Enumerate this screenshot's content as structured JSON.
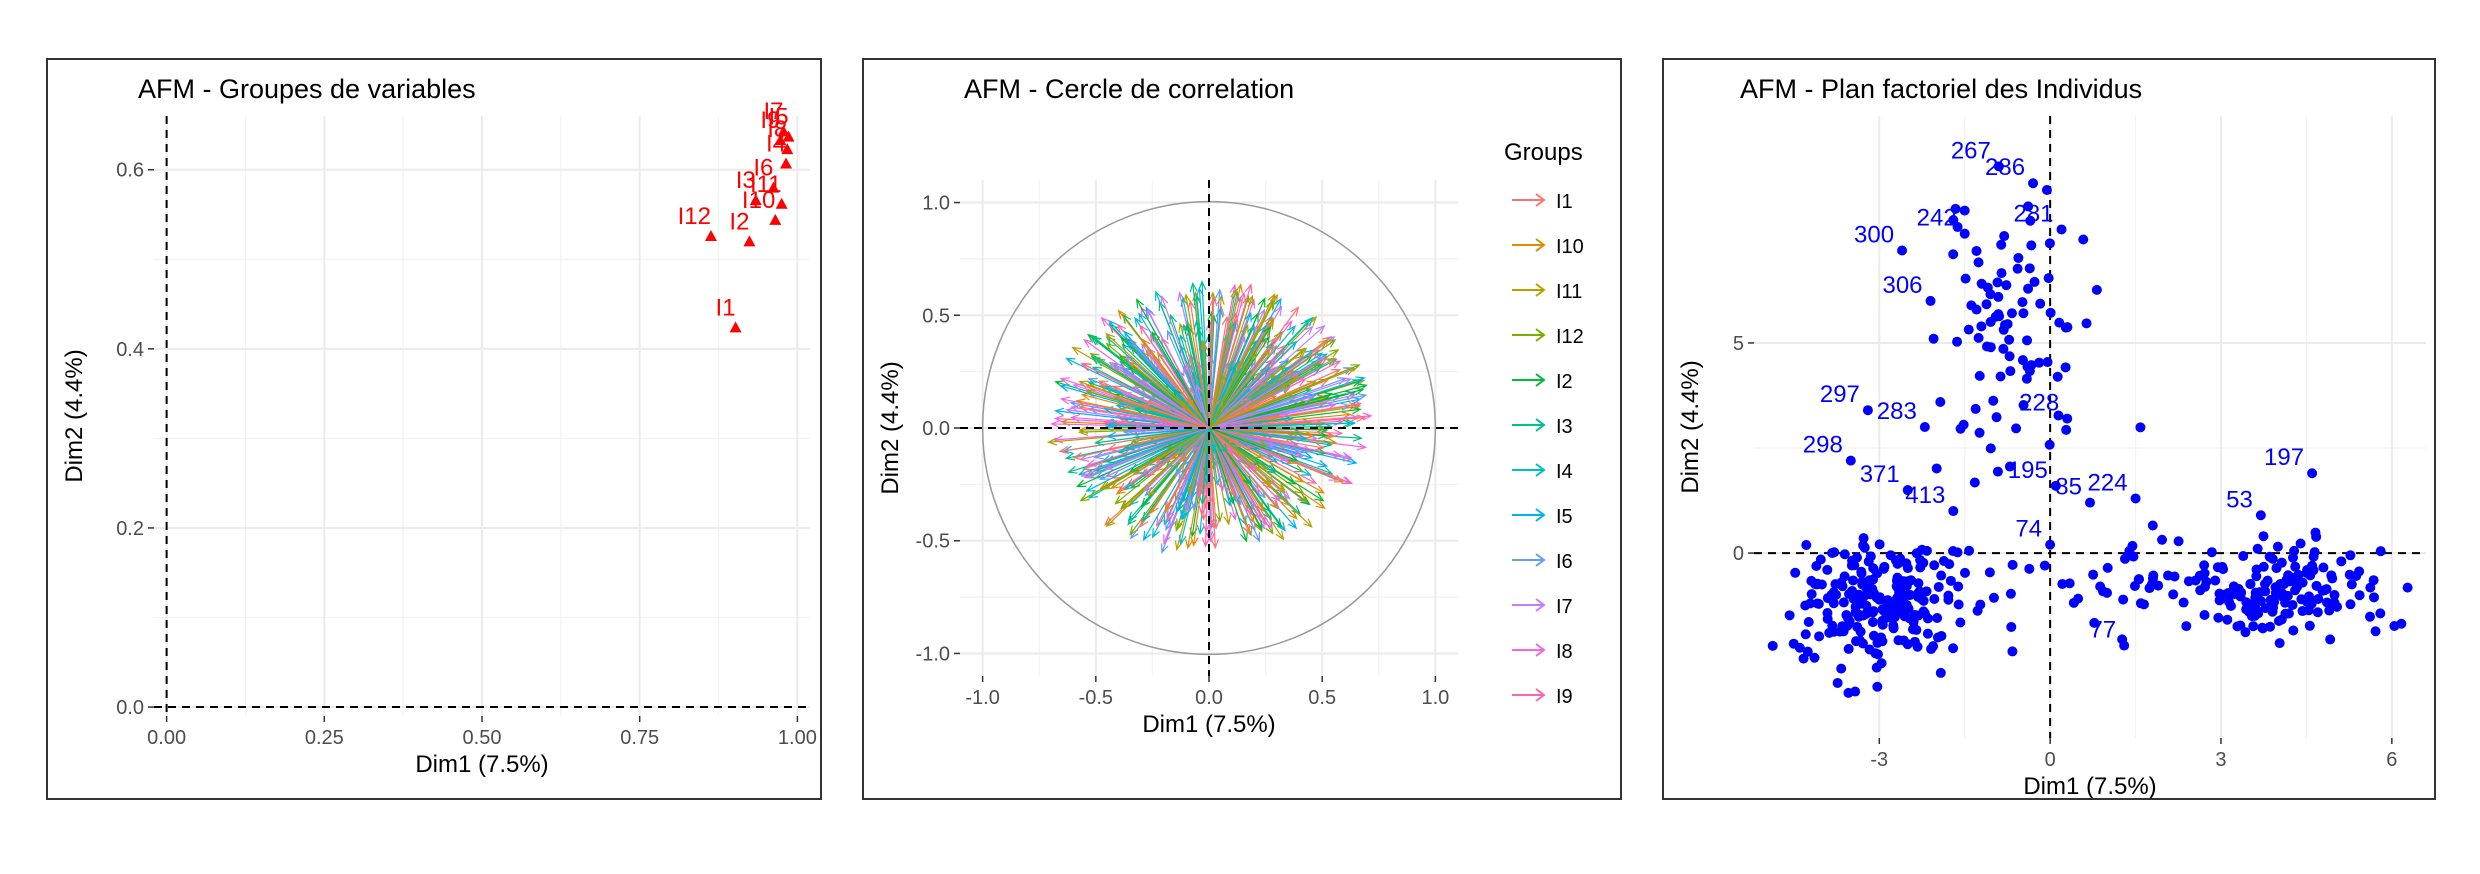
{
  "chart_data": [
    {
      "type": "scatter",
      "title": "AFM - Groupes de variables",
      "xlabel": "Dim1 (7.5%)",
      "ylabel": "Dim2 (4.4%)",
      "xlim": [
        -0.02,
        1.02
      ],
      "ylim": [
        -0.01,
        0.66
      ],
      "x_ticks": [
        "0.00",
        "0.25",
        "0.50",
        "0.75",
        "1.00"
      ],
      "y_ticks": [
        "0.0",
        "0.2",
        "0.4",
        "0.6"
      ],
      "grid": true,
      "marker_color": "#ff0000",
      "points": [
        {
          "label": "I1",
          "x": 0.902,
          "y": 0.424
        },
        {
          "label": "I12",
          "x": 0.863,
          "y": 0.526
        },
        {
          "label": "I2",
          "x": 0.924,
          "y": 0.52
        },
        {
          "label": "I10",
          "x": 0.965,
          "y": 0.544
        },
        {
          "label": "I11",
          "x": 0.975,
          "y": 0.562
        },
        {
          "label": "I3",
          "x": 0.934,
          "y": 0.566
        },
        {
          "label": "I6",
          "x": 0.962,
          "y": 0.58
        },
        {
          "label": "I4",
          "x": 0.982,
          "y": 0.607
        },
        {
          "label": "I8",
          "x": 0.984,
          "y": 0.623
        },
        {
          "label": "I5",
          "x": 0.986,
          "y": 0.637
        },
        {
          "label": "I7",
          "x": 0.978,
          "y": 0.643
        },
        {
          "label": "I9",
          "x": 0.973,
          "y": 0.633
        }
      ],
      "reference_lines": {
        "x": 0,
        "y": 0,
        "style": "dashed"
      }
    },
    {
      "type": "scatter",
      "title": "AFM - Cercle de correlation",
      "xlabel": "Dim1 (7.5%)",
      "ylabel": "Dim2 (4.4%)",
      "xlim": [
        -1.1,
        1.1
      ],
      "ylim": [
        -1.1,
        1.1
      ],
      "x_ticks": [
        "-1.0",
        "-0.5",
        "0.0",
        "0.5",
        "1.0"
      ],
      "y_ticks": [
        "-1.0",
        "-0.5",
        "0.0",
        "0.5",
        "1.0"
      ],
      "grid": true,
      "unit_circle": true,
      "legend_title": "Groups",
      "legend_position": "right",
      "groups": [
        {
          "name": "I1",
          "color": "#F8766D"
        },
        {
          "name": "I10",
          "color": "#DE8C00"
        },
        {
          "name": "I11",
          "color": "#B79F00"
        },
        {
          "name": "I12",
          "color": "#7CAE00"
        },
        {
          "name": "I2",
          "color": "#00BA38"
        },
        {
          "name": "I3",
          "color": "#00C08B"
        },
        {
          "name": "I4",
          "color": "#00BFC4"
        },
        {
          "name": "I5",
          "color": "#00B4F0"
        },
        {
          "name": "I6",
          "color": "#619CFF"
        },
        {
          "name": "I7",
          "color": "#C77CFF"
        },
        {
          "name": "I8",
          "color": "#F564E3"
        },
        {
          "name": "I9",
          "color": "#FF64B0"
        }
      ],
      "arrow_cloud": {
        "x_range": [
          -0.72,
          0.72
        ],
        "y_range": [
          -0.58,
          0.66
        ],
        "count_per_group": 60
      }
    },
    {
      "type": "scatter",
      "title": "AFM - Plan factoriel des Individus",
      "xlabel": "Dim1 (7.5%)",
      "ylabel": "Dim2 (4.4%)",
      "xlim": [
        -5.2,
        6.6
      ],
      "ylim": [
        -4.4,
        10.4
      ],
      "x_ticks": [
        "-3",
        "0",
        "3",
        "6"
      ],
      "y_ticks": [
        "0",
        "5"
      ],
      "grid": true,
      "marker_color": "#0000ff",
      "labeled_points": [
        {
          "label": "267",
          "x": -0.9,
          "y": 9.2
        },
        {
          "label": "286",
          "x": -0.3,
          "y": 8.8
        },
        {
          "label": "281",
          "x": 0.2,
          "y": 7.7
        },
        {
          "label": "242",
          "x": -1.5,
          "y": 7.6
        },
        {
          "label": "300",
          "x": -2.6,
          "y": 7.2
        },
        {
          "label": "306",
          "x": -2.1,
          "y": 6.0
        },
        {
          "label": "297",
          "x": -3.2,
          "y": 3.4
        },
        {
          "label": "283",
          "x": -2.2,
          "y": 3.0
        },
        {
          "label": "228",
          "x": 0.3,
          "y": 3.2
        },
        {
          "label": "298",
          "x": -3.5,
          "y": 2.2
        },
        {
          "label": "371",
          "x": -2.5,
          "y": 1.5
        },
        {
          "label": "195",
          "x": 0.1,
          "y": 1.6
        },
        {
          "label": "85",
          "x": 0.7,
          "y": 1.2
        },
        {
          "label": "224",
          "x": 1.5,
          "y": 1.3
        },
        {
          "label": "413",
          "x": -1.7,
          "y": 1.0
        },
        {
          "label": "53",
          "x": 3.7,
          "y": 0.9
        },
        {
          "label": "197",
          "x": 4.6,
          "y": 1.9
        },
        {
          "label": "74",
          "x": 0.0,
          "y": 0.2
        },
        {
          "label": "77",
          "x": 1.3,
          "y": -2.2
        }
      ],
      "clusters": [
        {
          "center": [
            -3.0,
            -1.2
          ],
          "spread": [
            0.75,
            0.75
          ],
          "n": 230
        },
        {
          "center": [
            4.2,
            -0.9
          ],
          "spread": [
            0.85,
            0.55
          ],
          "n": 150
        },
        {
          "center": [
            -0.6,
            5.2
          ],
          "spread": [
            0.7,
            1.6
          ],
          "n": 90
        },
        {
          "center": [
            1.3,
            -0.5
          ],
          "spread": [
            0.8,
            0.6
          ],
          "n": 40
        }
      ]
    }
  ]
}
